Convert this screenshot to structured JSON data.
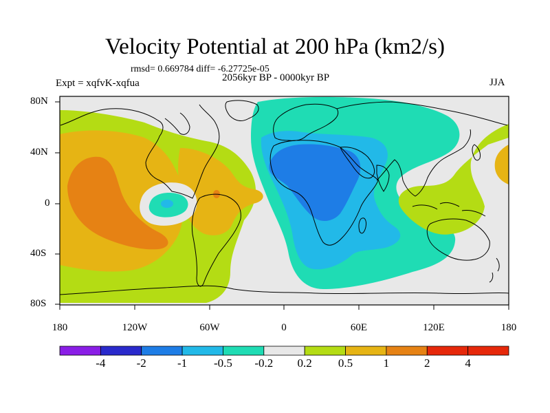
{
  "title": "Velocity Potential at 200 hPa (km2/s)",
  "stats": "rmsd= 0.669784   diff= -6.27725e-05",
  "period": "2056kyr BP - 0000kyr BP",
  "experiment": "Expt = xqfvK-xqfua",
  "season": "JJA",
  "y_ticks": [
    "80N",
    "40N",
    "0",
    "40S",
    "80S"
  ],
  "x_ticks": [
    "180",
    "120W",
    "60W",
    "0",
    "60E",
    "120E",
    "180"
  ],
  "colorbar": {
    "labels": [
      "-4",
      "-2",
      "-1",
      "-0.5",
      "-0.2",
      "0.2",
      "0.5",
      "1",
      "2",
      "4"
    ],
    "colors": [
      "#8a1ee6",
      "#2a2acc",
      "#1e7de6",
      "#22b9e8",
      "#1fdcb4",
      "#e8e8e8",
      "#b4dc14",
      "#e6b414",
      "#e68214",
      "#e6280a"
    ]
  },
  "map_colors": {
    "ocean_background": "#e8e8e8",
    "minus_0_2": "#1fdcb4",
    "minus_0_5": "#22b9e8",
    "minus_1": "#1e7de6",
    "plus_0_2": "#b4dc14",
    "plus_0_5": "#e6b414",
    "plus_1": "#e68214",
    "coastline": "#000000"
  }
}
